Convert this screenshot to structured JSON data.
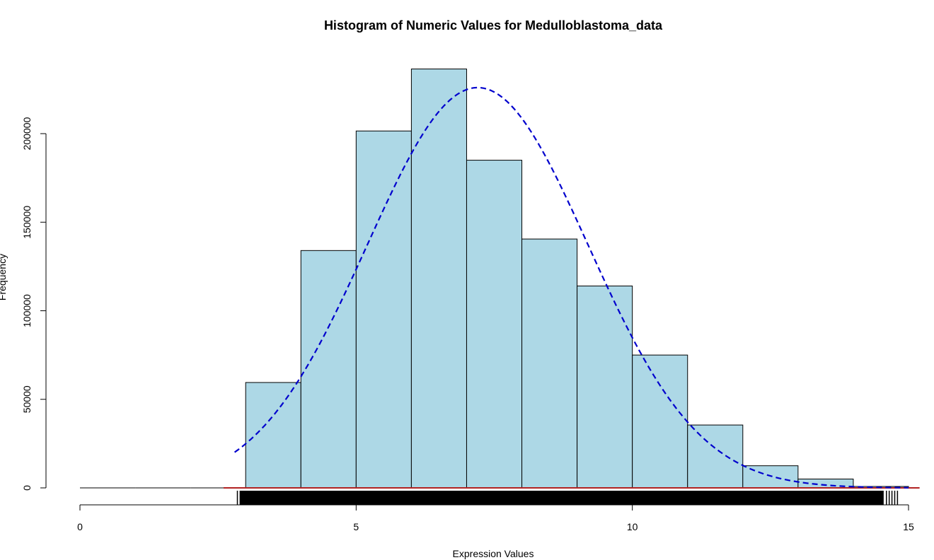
{
  "chart_data": {
    "type": "bar",
    "title": "Histogram of Numeric Values for Medulloblastoma_data",
    "xlabel": "Expression Values",
    "ylabel": "Frequency",
    "xlim": [
      0,
      15
    ],
    "ylim": [
      0,
      240000
    ],
    "x_ticks": [
      0,
      5,
      10,
      15
    ],
    "y_ticks": [
      0,
      50000,
      100000,
      150000,
      200000
    ],
    "bar_color": "#add8e6",
    "bar_border": "#000000",
    "bins": [
      {
        "start": 0,
        "end": 1,
        "count": 0
      },
      {
        "start": 1,
        "end": 2,
        "count": 0
      },
      {
        "start": 2,
        "end": 3,
        "count": 0
      },
      {
        "start": 3,
        "end": 4,
        "count": 59500
      },
      {
        "start": 4,
        "end": 5,
        "count": 134000
      },
      {
        "start": 5,
        "end": 6,
        "count": 201500
      },
      {
        "start": 6,
        "end": 7,
        "count": 236500
      },
      {
        "start": 7,
        "end": 8,
        "count": 185000
      },
      {
        "start": 8,
        "end": 9,
        "count": 140500
      },
      {
        "start": 9,
        "end": 10,
        "count": 114000
      },
      {
        "start": 10,
        "end": 11,
        "count": 75000
      },
      {
        "start": 11,
        "end": 12,
        "count": 35500
      },
      {
        "start": 12,
        "end": 13,
        "count": 12500
      },
      {
        "start": 13,
        "end": 14,
        "count": 5000
      },
      {
        "start": 14,
        "end": 15,
        "count": 800
      }
    ],
    "normal_curve": {
      "color": "#0000cd",
      "style": "dashed",
      "x_range": [
        2.8,
        15
      ],
      "mean": 7.2,
      "sd": 2.0,
      "peak": 226000
    },
    "density_line": {
      "color": "#b22222",
      "x_range": [
        2.6,
        15.2
      ],
      "level": 0
    },
    "rug": {
      "color": "#000000",
      "x_range": [
        2.85,
        14.8
      ],
      "sparse_ticks": [
        2.85,
        2.9,
        14.6,
        14.65,
        14.7,
        14.75,
        14.8
      ]
    },
    "grid": false
  }
}
